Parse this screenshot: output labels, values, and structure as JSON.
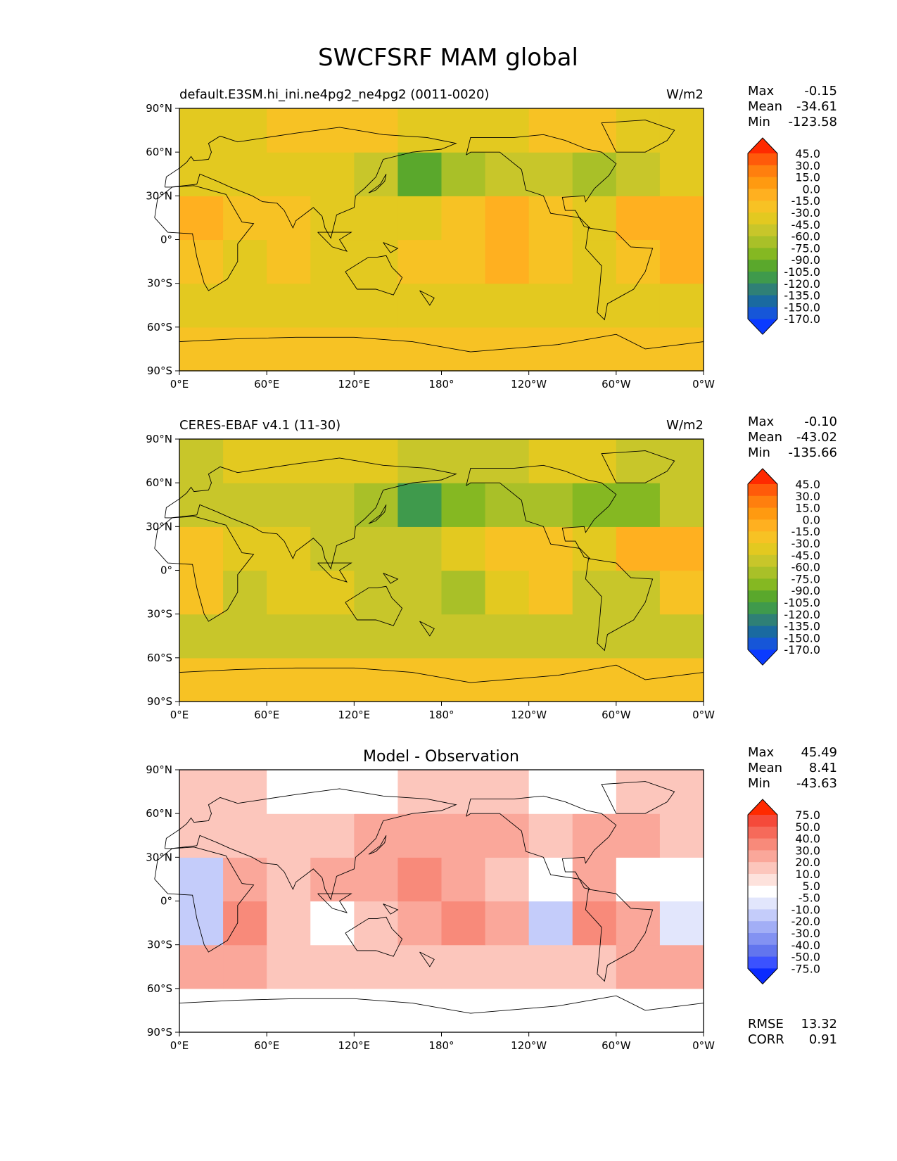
{
  "figure": {
    "title": "SWCFSRF MAM global"
  },
  "axes": {
    "lat_ticks": [
      "90°N",
      "60°N",
      "30°N",
      "0°",
      "30°S",
      "60°S",
      "90°S"
    ],
    "lon_ticks": [
      "0°E",
      "60°E",
      "120°E",
      "180°",
      "120°W",
      "60°W",
      "0°W"
    ]
  },
  "panels": [
    {
      "title_left": "default.E3SM.hi_ini.ne4pg2_ne4pg2 (0011-0020)",
      "title_center": "",
      "units": "W/m2",
      "stats": {
        "max_label": "Max",
        "max": "-0.15",
        "mean_label": "Mean",
        "mean": "-34.61",
        "min_label": "Min",
        "min": "-123.58"
      },
      "colorbar": {
        "levels": [
          "45.0",
          "30.0",
          "15.0",
          "0.0",
          "-15.0",
          "-30.0",
          "-45.0",
          "-60.0",
          "-75.0",
          "-90.0",
          "-105.0",
          "-120.0",
          "-135.0",
          "-150.0",
          "-170.0"
        ],
        "colors": [
          "#ff2a00",
          "#ff5a0a",
          "#ff7f0e",
          "#ff9a10",
          "#ffb020",
          "#f7c224",
          "#e3c920",
          "#c8c62a",
          "#a9c028",
          "#85b822",
          "#5aa82c",
          "#3f9a4c",
          "#2f8076",
          "#1a6aa0",
          "#1656d8",
          "#0b3bff"
        ]
      }
    },
    {
      "title_left": "CERES-EBAF v4.1 (11-30)",
      "title_center": "",
      "units": "W/m2",
      "stats": {
        "max_label": "Max",
        "max": "-0.10",
        "mean_label": "Mean",
        "mean": "-43.02",
        "min_label": "Min",
        "min": "-135.66"
      },
      "colorbar": {
        "levels": [
          "45.0",
          "30.0",
          "15.0",
          "0.0",
          "-15.0",
          "-30.0",
          "-45.0",
          "-60.0",
          "-75.0",
          "-90.0",
          "-105.0",
          "-120.0",
          "-135.0",
          "-150.0",
          "-170.0"
        ],
        "colors": [
          "#ff2a00",
          "#ff5a0a",
          "#ff7f0e",
          "#ff9a10",
          "#ffb020",
          "#f7c224",
          "#e3c920",
          "#c8c62a",
          "#a9c028",
          "#85b822",
          "#5aa82c",
          "#3f9a4c",
          "#2f8076",
          "#1a6aa0",
          "#1656d8",
          "#0b3bff"
        ]
      }
    },
    {
      "title_left": "",
      "title_center": "Model - Observation",
      "units": "",
      "stats": {
        "max_label": "Max",
        "max": "45.49",
        "mean_label": "Mean",
        "mean": "8.41",
        "min_label": "Min",
        "min": "-43.63"
      },
      "colorbar": {
        "levels": [
          "75.0",
          "50.0",
          "40.0",
          "30.0",
          "20.0",
          "10.0",
          "5.0",
          "-5.0",
          "-10.0",
          "-20.0",
          "-30.0",
          "-40.0",
          "-50.0",
          "-75.0"
        ],
        "colors": [
          "#ff2a00",
          "#f54a3a",
          "#f66a5a",
          "#f88a7a",
          "#faa79a",
          "#fcc6bc",
          "#fde2dc",
          "#ffffff",
          "#e2e6fc",
          "#c4ccfa",
          "#a2aef6",
          "#8392f2",
          "#6275ee",
          "#3b52ff",
          "#0b2bff"
        ]
      },
      "error_stats": {
        "rmse_label": "RMSE",
        "rmse": "13.32",
        "corr_label": "CORR",
        "corr": "0.91"
      }
    }
  ],
  "chart_data": [
    {
      "type": "heatmap",
      "title": "default.E3SM.hi_ini.ne4pg2_ne4pg2 (0011-0020)",
      "units": "W/m2",
      "xlim": [
        0,
        360
      ],
      "ylim": [
        -90,
        90
      ],
      "x": [
        15,
        45,
        75,
        105,
        135,
        165,
        195,
        225,
        255,
        285,
        315,
        345
      ],
      "y": [
        -75,
        -45,
        -15,
        15,
        45,
        75
      ],
      "values": [
        [
          -30,
          -30,
          -30,
          -30,
          -30,
          -30,
          -30,
          -30,
          -30,
          -30,
          -30,
          -30
        ],
        [
          -45,
          -45,
          -45,
          -45,
          -45,
          -45,
          -45,
          -45,
          -45,
          -45,
          -45,
          -45
        ],
        [
          -30,
          -45,
          -30,
          -45,
          -45,
          -30,
          -30,
          -15,
          -30,
          -45,
          -30,
          -15
        ],
        [
          -15,
          -30,
          -30,
          -45,
          -45,
          -45,
          -30,
          -15,
          -30,
          -45,
          -15,
          -15
        ],
        [
          -45,
          -45,
          -45,
          -45,
          -60,
          -105,
          -75,
          -60,
          -60,
          -75,
          -60,
          -45
        ],
        [
          -45,
          -45,
          -30,
          -30,
          -30,
          -45,
          -45,
          -45,
          -30,
          -30,
          -45,
          -45
        ]
      ],
      "stats": {
        "max": -0.15,
        "mean": -34.61,
        "min": -123.58
      }
    },
    {
      "type": "heatmap",
      "title": "CERES-EBAF v4.1 (11-30)",
      "units": "W/m2",
      "xlim": [
        0,
        360
      ],
      "ylim": [
        -90,
        90
      ],
      "x": [
        15,
        45,
        75,
        105,
        135,
        165,
        195,
        225,
        255,
        285,
        315,
        345
      ],
      "y": [
        -75,
        -45,
        -15,
        15,
        45,
        75
      ],
      "values": [
        [
          -30,
          -30,
          -30,
          -30,
          -30,
          -30,
          -30,
          -30,
          -30,
          -30,
          -30,
          -30
        ],
        [
          -60,
          -60,
          -60,
          -60,
          -60,
          -60,
          -60,
          -60,
          -60,
          -60,
          -60,
          -60
        ],
        [
          -30,
          -60,
          -45,
          -45,
          -60,
          -60,
          -75,
          -45,
          -30,
          -60,
          -60,
          -30
        ],
        [
          -30,
          -45,
          -45,
          -60,
          -60,
          -60,
          -45,
          -30,
          -30,
          -45,
          -15,
          -15
        ],
        [
          -60,
          -60,
          -60,
          -60,
          -75,
          -120,
          -90,
          -75,
          -75,
          -90,
          -90,
          -60
        ],
        [
          -60,
          -45,
          -45,
          -45,
          -45,
          -60,
          -60,
          -60,
          -45,
          -45,
          -60,
          -60
        ]
      ],
      "stats": {
        "max": -0.1,
        "mean": -43.02,
        "min": -135.66
      }
    },
    {
      "type": "heatmap",
      "title": "Model - Observation",
      "xlim": [
        0,
        360
      ],
      "ylim": [
        -90,
        90
      ],
      "x": [
        15,
        45,
        75,
        105,
        135,
        165,
        195,
        225,
        255,
        285,
        315,
        345
      ],
      "y": [
        -75,
        -45,
        -15,
        15,
        45,
        75
      ],
      "values": [
        [
          0,
          0,
          0,
          0,
          0,
          0,
          0,
          0,
          0,
          0,
          0,
          0
        ],
        [
          20,
          20,
          10,
          10,
          10,
          10,
          10,
          10,
          10,
          10,
          20,
          20
        ],
        [
          -20,
          30,
          10,
          0,
          10,
          20,
          30,
          20,
          -20,
          30,
          20,
          -10
        ],
        [
          -20,
          20,
          10,
          20,
          20,
          30,
          20,
          10,
          0,
          20,
          0,
          0
        ],
        [
          10,
          10,
          10,
          10,
          20,
          20,
          20,
          20,
          10,
          20,
          20,
          10
        ],
        [
          10,
          10,
          0,
          0,
          0,
          10,
          10,
          10,
          0,
          0,
          10,
          10
        ]
      ],
      "stats": {
        "max": 45.49,
        "mean": 8.41,
        "min": -43.63,
        "rmse": 13.32,
        "corr": 0.91
      }
    }
  ]
}
